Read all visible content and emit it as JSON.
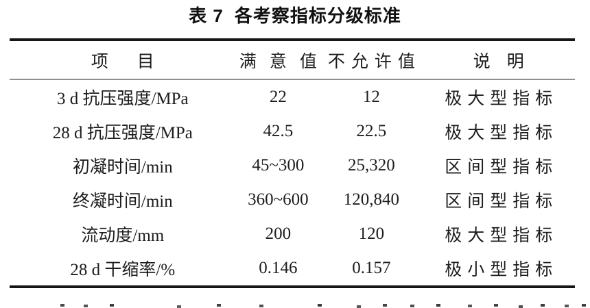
{
  "caption": {
    "label": "表 7",
    "title": "各考察指标分级标准"
  },
  "table": {
    "headers": [
      "项目",
      "满意值",
      "不允许值",
      "说明"
    ],
    "rows": [
      [
        "3 d 抗压强度/MPa",
        "22",
        "12",
        "极大型指标"
      ],
      [
        "28 d 抗压强度/MPa",
        "42.5",
        "22.5",
        "极大型指标"
      ],
      [
        "初凝时间/min",
        "45~300",
        "25,320",
        "区间型指标"
      ],
      [
        "终凝时间/min",
        "360~600",
        "120,840",
        "区间型指标"
      ],
      [
        "流动度/mm",
        "200",
        "120",
        "极大型指标"
      ],
      [
        "28 d 干缩率/%",
        "0.146",
        "0.157",
        "极小型指标"
      ]
    ]
  },
  "colors": {
    "text": "#1d1d1d",
    "thick_rule": "#161616",
    "thin_rule": "#8f8f8f",
    "background": "#ffffff"
  }
}
